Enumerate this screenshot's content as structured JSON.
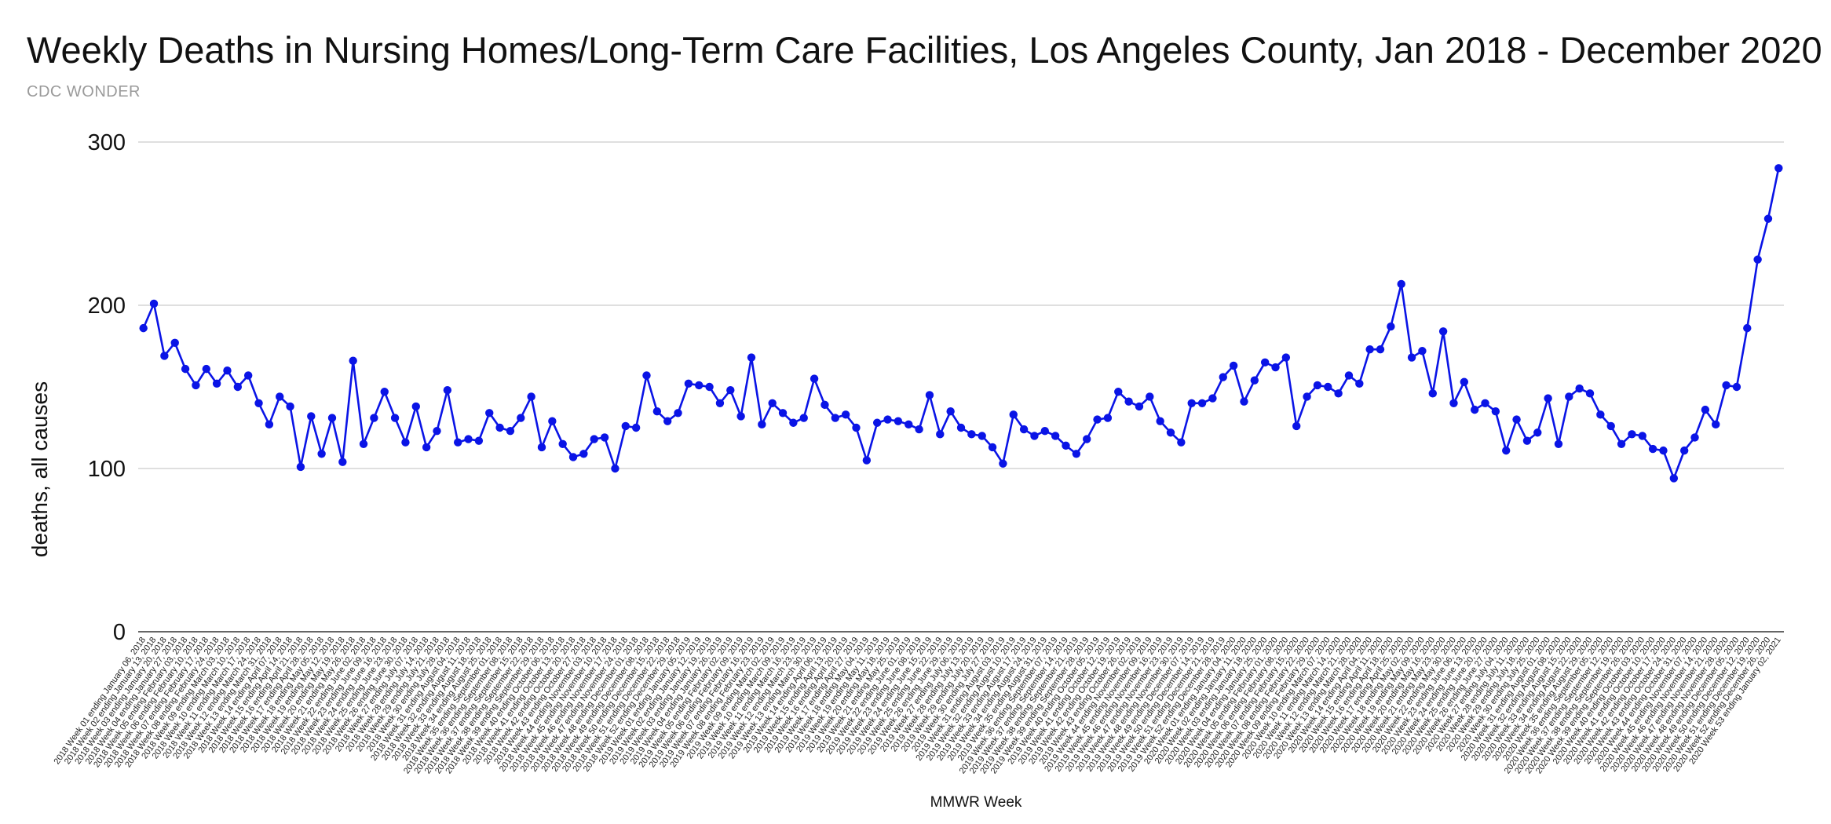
{
  "chart_data": {
    "type": "line",
    "title": "Weekly Deaths in Nursing Homes/Long-Term Care Facilities, Los Angeles County, Jan 2018 - December 2020",
    "subtitle": "CDC WONDER",
    "xlabel": "MMWR Week",
    "ylabel": "deaths, all causes",
    "ylim": [
      0,
      300
    ],
    "yticks": [
      0,
      100,
      200,
      300
    ],
    "grid": true,
    "series_color": "#0a14e6",
    "categories": [
      "2018 Week 01 ending January 06, 2018",
      "2018 Week 02 ending January 13, 2018",
      "2018 Week 03 ending January 20, 2018",
      "2018 Week 04 ending January 27, 2018",
      "2018 Week 05 ending February 03, 2018",
      "2018 Week 06 ending February 10, 2018",
      "2018 Week 07 ending February 17, 2018",
      "2018 Week 08 ending February 24, 2018",
      "2018 Week 09 ending March 03, 2018",
      "2018 Week 10 ending March 10, 2018",
      "2018 Week 11 ending March 17, 2018",
      "2018 Week 12 ending March 24, 2018",
      "2018 Week 13 ending March 31, 2018",
      "2018 Week 14 ending April 07, 2018",
      "2018 Week 15 ending April 14, 2018",
      "2018 Week 16 ending April 21, 2018",
      "2018 Week 17 ending April 28, 2018",
      "2018 Week 18 ending May 05, 2018",
      "2018 Week 19 ending May 12, 2018",
      "2018 Week 20 ending May 19, 2018",
      "2018 Week 21 ending May 26, 2018",
      "2018 Week 22 ending June 02, 2018",
      "2018 Week 23 ending June 09, 2018",
      "2018 Week 24 ending June 16, 2018",
      "2018 Week 25 ending June 23, 2018",
      "2018 Week 26 ending June 30, 2018",
      "2018 Week 27 ending July 07, 2018",
      "2018 Week 28 ending July 14, 2018",
      "2018 Week 29 ending July 21, 2018",
      "2018 Week 30 ending July 28, 2018",
      "2018 Week 31 ending August 04, 2018",
      "2018 Week 32 ending August 11, 2018",
      "2018 Week 33 ending August 18, 2018",
      "2018 Week 34 ending August 25, 2018",
      "2018 Week 35 ending September 01, 2018",
      "2018 Week 36 ending September 08, 2018",
      "2018 Week 37 ending September 15, 2018",
      "2018 Week 38 ending September 22, 2018",
      "2018 Week 39 ending September 29, 2018",
      "2018 Week 40 ending October 06, 2018",
      "2018 Week 41 ending October 13, 2018",
      "2018 Week 42 ending October 20, 2018",
      "2018 Week 43 ending October 27, 2018",
      "2018 Week 44 ending November 03, 2018",
      "2018 Week 45 ending November 10, 2018",
      "2018 Week 46 ending November 17, 2018",
      "2018 Week 47 ending November 24, 2018",
      "2018 Week 48 ending December 01, 2018",
      "2018 Week 49 ending December 08, 2018",
      "2018 Week 50 ending December 15, 2018",
      "2018 Week 51 ending December 22, 2018",
      "2018 Week 52 ending December 29, 2018",
      "2019 Week 01 ending January 05, 2019",
      "2019 Week 02 ending January 12, 2019",
      "2019 Week 03 ending January 19, 2019",
      "2019 Week 04 ending January 26, 2019",
      "2019 Week 05 ending February 02, 2019",
      "2019 Week 06 ending February 09, 2019",
      "2019 Week 07 ending February 16, 2019",
      "2019 Week 08 ending February 23, 2019",
      "2019 Week 09 ending March 02, 2019",
      "2019 Week 10 ending March 09, 2019",
      "2019 Week 11 ending March 16, 2019",
      "2019 Week 12 ending March 23, 2019",
      "2019 Week 13 ending March 30, 2019",
      "2019 Week 14 ending April 06, 2019",
      "2019 Week 15 ending April 13, 2019",
      "2019 Week 16 ending April 20, 2019",
      "2019 Week 17 ending April 27, 2019",
      "2019 Week 18 ending May 04, 2019",
      "2019 Week 19 ending May 11, 2019",
      "2019 Week 20 ending May 18, 2019",
      "2019 Week 21 ending May 25, 2019",
      "2019 Week 22 ending June 01, 2019",
      "2019 Week 23 ending June 08, 2019",
      "2019 Week 24 ending June 15, 2019",
      "2019 Week 25 ending June 22, 2019",
      "2019 Week 26 ending June 29, 2019",
      "2019 Week 27 ending July 06, 2019",
      "2019 Week 28 ending July 13, 2019",
      "2019 Week 29 ending July 20, 2019",
      "2019 Week 30 ending July 27, 2019",
      "2019 Week 31 ending August 03, 2019",
      "2019 Week 32 ending August 10, 2019",
      "2019 Week 33 ending August 17, 2019",
      "2019 Week 34 ending August 24, 2019",
      "2019 Week 35 ending August 31, 2019",
      "2019 Week 36 ending September 07, 2019",
      "2019 Week 37 ending September 14, 2019",
      "2019 Week 38 ending September 21, 2019",
      "2019 Week 39 ending September 28, 2019",
      "2019 Week 40 ending October 05, 2019",
      "2019 Week 41 ending October 12, 2019",
      "2019 Week 42 ending October 19, 2019",
      "2019 Week 43 ending October 26, 2019",
      "2019 Week 44 ending November 02, 2019",
      "2019 Week 45 ending November 09, 2019",
      "2019 Week 46 ending November 16, 2019",
      "2019 Week 47 ending November 23, 2019",
      "2019 Week 48 ending November 30, 2019",
      "2019 Week 49 ending December 07, 2019",
      "2019 Week 50 ending December 14, 2019",
      "2019 Week 51 ending December 21, 2019",
      "2019 Week 52 ending December 28, 2019",
      "2020 Week 01 ending January 04, 2020",
      "2020 Week 02 ending January 11, 2020",
      "2020 Week 03 ending January 18, 2020",
      "2020 Week 04 ending January 25, 2020",
      "2020 Week 05 ending February 01, 2020",
      "2020 Week 06 ending February 08, 2020",
      "2020 Week 07 ending February 15, 2020",
      "2020 Week 08 ending February 22, 2020",
      "2020 Week 09 ending February 29, 2020",
      "2020 Week 10 ending March 07, 2020",
      "2020 Week 11 ending March 14, 2020",
      "2020 Week 12 ending March 21, 2020",
      "2020 Week 13 ending March 28, 2020",
      "2020 Week 14 ending April 04, 2020",
      "2020 Week 15 ending April 11, 2020",
      "2020 Week 16 ending April 18, 2020",
      "2020 Week 17 ending April 25, 2020",
      "2020 Week 18 ending May 02, 2020",
      "2020 Week 19 ending May 09, 2020",
      "2020 Week 20 ending May 16, 2020",
      "2020 Week 21 ending May 23, 2020",
      "2020 Week 22 ending May 30, 2020",
      "2020 Week 23 ending June 06, 2020",
      "2020 Week 24 ending June 13, 2020",
      "2020 Week 25 ending June 20, 2020",
      "2020 Week 26 ending June 27, 2020",
      "2020 Week 27 ending July 04, 2020",
      "2020 Week 28 ending July 11, 2020",
      "2020 Week 29 ending July 18, 2020",
      "2020 Week 30 ending July 25, 2020",
      "2020 Week 31 ending August 01, 2020",
      "2020 Week 32 ending August 08, 2020",
      "2020 Week 33 ending August 15, 2020",
      "2020 Week 34 ending August 22, 2020",
      "2020 Week 35 ending August 29, 2020",
      "2020 Week 36 ending September 05, 2020",
      "2020 Week 37 ending September 12, 2020",
      "2020 Week 38 ending September 19, 2020",
      "2020 Week 39 ending September 26, 2020",
      "2020 Week 40 ending October 03, 2020",
      "2020 Week 41 ending October 10, 2020",
      "2020 Week 42 ending October 17, 2020",
      "2020 Week 43 ending October 24, 2020",
      "2020 Week 44 ending October 31, 2020",
      "2020 Week 45 ending November 07, 2020",
      "2020 Week 46 ending November 14, 2020",
      "2020 Week 47 ending November 21, 2020",
      "2020 Week 48 ending November 28, 2020",
      "2020 Week 49 ending December 05, 2020",
      "2020 Week 50 ending December 12, 2020",
      "2020 Week 51 ending December 19, 2020",
      "2020 Week 52 ending December 26, 2020",
      "2020 Week 53 ending January 02, 2021"
    ],
    "series": [
      {
        "name": "deaths, all causes",
        "values": [
          186,
          201,
          169,
          177,
          161,
          151,
          161,
          152,
          160,
          150,
          157,
          140,
          127,
          144,
          138,
          101,
          132,
          109,
          131,
          104,
          166,
          115,
          131,
          147,
          131,
          116,
          138,
          113,
          123,
          148,
          116,
          118,
          117,
          134,
          125,
          123,
          131,
          144,
          113,
          129,
          115,
          107,
          109,
          118,
          119,
          100,
          126,
          125,
          157,
          135,
          129,
          134,
          152,
          151,
          150,
          140,
          148,
          132,
          168,
          127,
          140,
          134,
          128,
          131,
          155,
          139,
          131,
          133,
          125,
          105,
          128,
          130,
          129,
          127,
          124,
          145,
          121,
          135,
          125,
          121,
          120,
          113,
          103,
          133,
          124,
          120,
          123,
          120,
          114,
          109,
          118,
          130,
          131,
          147,
          141,
          138,
          144,
          129,
          122,
          116,
          140,
          140,
          143,
          156,
          163,
          141,
          154,
          165,
          162,
          168,
          126,
          144,
          151,
          150,
          146,
          157,
          152,
          173,
          173,
          187,
          213,
          168,
          172,
          146,
          184,
          140,
          153,
          136,
          140,
          135,
          111,
          130,
          117,
          122,
          143,
          115,
          144,
          149,
          146,
          133,
          126,
          115,
          121,
          120,
          112,
          111,
          94,
          111,
          119,
          136,
          127,
          151,
          150,
          186,
          228,
          253,
          284
        ]
      }
    ]
  }
}
